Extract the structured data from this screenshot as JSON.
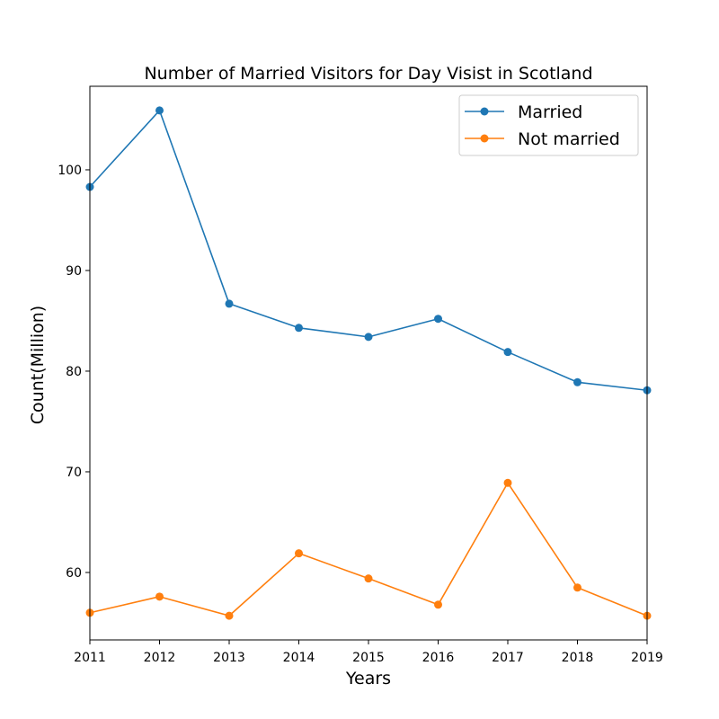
{
  "chart_data": {
    "type": "line",
    "title": "Number of Married Visitors for Day Visist in Scotland",
    "xlabel": "Years",
    "ylabel": "Count(Million)",
    "x": [
      2011,
      2012,
      2013,
      2014,
      2015,
      2016,
      2017,
      2018,
      2019
    ],
    "xlim": [
      2011,
      2019
    ],
    "ylim": [
      53.3,
      108.3
    ],
    "yticks": [
      60,
      70,
      80,
      90,
      100
    ],
    "grid": false,
    "legend_position": "top-right",
    "series": [
      {
        "name": "Married",
        "color": "#1f77b4",
        "values": [
          98.3,
          105.9,
          86.7,
          84.3,
          83.4,
          85.2,
          81.9,
          78.9,
          78.1
        ]
      },
      {
        "name": "Not married",
        "color": "#ff7f0e",
        "values": [
          56.0,
          57.6,
          55.7,
          61.9,
          59.4,
          56.8,
          68.9,
          58.5,
          55.7
        ]
      }
    ]
  }
}
